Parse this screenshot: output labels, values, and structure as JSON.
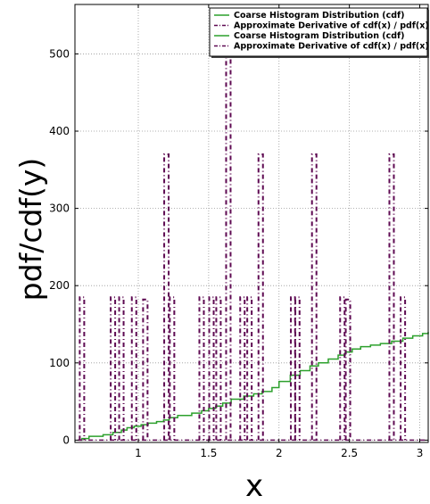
{
  "chart_data": {
    "type": "line",
    "title": "",
    "xlabel": "x",
    "ylabel": "pdf/cdf(y)",
    "xlim": [
      0.55,
      3.06
    ],
    "ylim": [
      -3,
      564
    ],
    "xticks": [
      1,
      1.5,
      2,
      2.5,
      3
    ],
    "xtick_labels": [
      "1",
      "1.5",
      "2",
      "2.5",
      "3"
    ],
    "yticks": [
      0,
      100,
      200,
      300,
      400,
      500
    ],
    "ytick_labels": [
      "0",
      "100",
      "200",
      "300",
      "400",
      "500"
    ],
    "grid": true,
    "legend_position": "top-right",
    "colors": {
      "cdf": "#2ca02c",
      "derivative": "#5e0a52",
      "grid": "#999999"
    },
    "legend": [
      {
        "label": "Coarse Histogram Distribution (cdf)",
        "style": "solid",
        "color": "#2ca02c"
      },
      {
        "label": "Approximate Derivative of cdf(x) / pdf(x)",
        "style": "dashdot",
        "color": "#5e0a52"
      },
      {
        "label": "Coarse Histogram Distribution (cdf)",
        "style": "solid",
        "color": "#2ca02c"
      },
      {
        "label": "Approximate Derivative of cdf(x) / pdf(x)",
        "style": "dashdot",
        "color": "#5e0a52"
      }
    ],
    "series": [
      {
        "name": "Coarse Histogram Distribution (cdf)",
        "kind": "step",
        "x": [
          0.58,
          0.6,
          0.65,
          0.75,
          0.82,
          0.88,
          0.92,
          0.97,
          1.02,
          1.07,
          1.13,
          1.18,
          1.22,
          1.28,
          1.38,
          1.45,
          1.5,
          1.55,
          1.6,
          1.66,
          1.75,
          1.82,
          1.88,
          1.95,
          2.0,
          2.08,
          2.15,
          2.22,
          2.28,
          2.35,
          2.42,
          2.47,
          2.52,
          2.58,
          2.65,
          2.72,
          2.8,
          2.88,
          2.95,
          3.02,
          3.06
        ],
        "y": [
          0,
          2,
          5,
          7,
          10,
          13,
          16,
          18,
          20,
          22,
          24,
          26,
          29,
          32,
          35,
          38,
          41,
          44,
          48,
          53,
          57,
          60,
          63,
          68,
          76,
          84,
          90,
          96,
          100,
          105,
          110,
          114,
          118,
          121,
          123,
          125,
          128,
          132,
          135,
          138,
          140
        ]
      },
      {
        "name": "Approximate Derivative of cdf(x) / pdf(x)",
        "kind": "spikes",
        "x": [
          0.6,
          0.82,
          0.88,
          0.97,
          1.05,
          1.2,
          1.24,
          1.45,
          1.52,
          1.57,
          1.64,
          1.74,
          1.79,
          1.87,
          2.1,
          2.13,
          2.25,
          2.45,
          2.49,
          2.8,
          2.88
        ],
        "y": [
          185,
          185,
          185,
          185,
          182,
          370,
          185,
          185,
          185,
          185,
          500,
          185,
          185,
          370,
          185,
          185,
          370,
          185,
          182,
          370,
          185
        ]
      }
    ]
  }
}
